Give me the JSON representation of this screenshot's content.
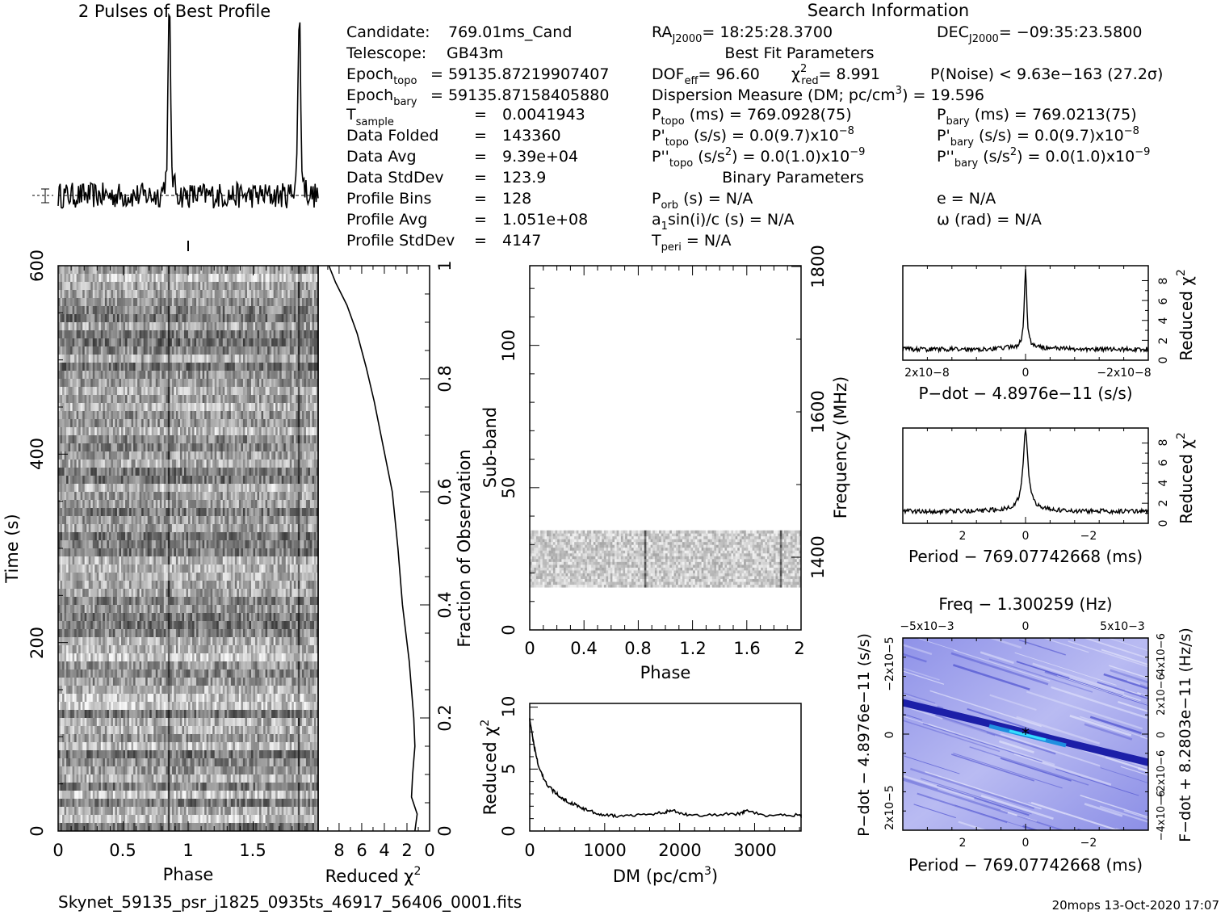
{
  "header": {
    "profile_title": "2 Pulses of Best Profile",
    "search_title": "Search Information",
    "best_fit_title": "Best Fit Parameters",
    "binary_title": "Binary Parameters",
    "filename": "Skynet_59135_psr_j1825_0935ts_46917_56406_0001.fits",
    "stamp": "20mops 13-Oct-2020 17:07"
  },
  "info": {
    "candidate": {
      "label": "Candidate:",
      "value": "769.01ms_Cand"
    },
    "telescope": {
      "label": "Telescope:",
      "value": "GB43m"
    },
    "epoch_topo": {
      "label": "Epoch",
      "sub": "topo",
      "value": "= 59135.87219907407"
    },
    "epoch_bary": {
      "label": "Epoch",
      "sub": "bary",
      "value": "= 59135.87158405880"
    },
    "t_sample": {
      "label": "T",
      "sub": "sample",
      "value": "0.0041943"
    },
    "data_folded": {
      "label": "Data Folded",
      "value": "143360"
    },
    "data_avg": {
      "label": "Data Avg",
      "value": "9.39e+04"
    },
    "data_stddev": {
      "label": "Data StdDev",
      "value": "123.9"
    },
    "profile_bins": {
      "label": "Profile Bins",
      "value": "128"
    },
    "profile_avg": {
      "label": "Profile Avg",
      "value": "1.051e+08"
    },
    "profile_stddev": {
      "label": "Profile StdDev",
      "value": "4147"
    },
    "ra": {
      "label": "RA",
      "sub": "J2000",
      "value": "= 18:25:28.3700"
    },
    "dec": {
      "label": "DEC",
      "sub": "J2000",
      "value": "= −09:35:23.5800"
    },
    "dof": {
      "label": "DOF",
      "sub": "eff",
      "value": "= 96.60"
    },
    "chi2": {
      "label": "χ",
      "sup": "2",
      "sub": "red",
      "value": "= 8.991"
    },
    "pnoise": "P(Noise) < 9.63e−163   (27.2σ)",
    "dm": {
      "label": "Dispersion Measure (DM; pc/cm",
      "sup": "3",
      "value": ") = 19.596"
    },
    "p_topo": {
      "label": "P",
      "sub": "topo",
      "value": " (ms) =  769.0928(75)"
    },
    "p_bary": {
      "label": "P",
      "sub": "bary",
      "value": " (ms) =  769.0213(75)"
    },
    "pd_topo": {
      "label": "P'",
      "sub": "topo",
      "value": " (s/s) = 0.0(9.7)x10",
      "exp": "−8"
    },
    "pd_bary": {
      "label": "P'",
      "sub": "bary",
      "value": " (s/s) = 0.0(9.7)x10",
      "exp": "−8"
    },
    "pdd_topo": {
      "label": "P''",
      "sub": "topo",
      "value": " (s/s",
      "sup": "2",
      "value2": ") = 0.0(1.0)x10",
      "exp": "−9"
    },
    "pdd_bary": {
      "label": "P''",
      "sub": "bary",
      "value": " (s/s",
      "sup": "2",
      "value2": ") = 0.0(1.0)x10",
      "exp": "−9"
    },
    "p_orb": {
      "label": "P",
      "sub": "orb",
      "value": " (s) = N/A"
    },
    "e": "e = N/A",
    "a1sini": {
      "label": "a",
      "sub": "1",
      "value": "sin(i)/c (s) = N/A"
    },
    "omega": "ω (rad) = N/A",
    "t_peri": {
      "label": "T",
      "sub": "peri",
      "value": " = N/A"
    },
    "eq": "="
  },
  "chart_data": [
    {
      "id": "best_profile",
      "type": "line",
      "title": "2 Pulses of Best Profile",
      "xlim": [
        0,
        2
      ],
      "peaks_phase": [
        0.855,
        1.855
      ],
      "baseline_level": 0.05,
      "peak_level": 1.0
    },
    {
      "id": "time_vs_phase",
      "type": "heatmap",
      "xlabel": "Phase",
      "ylabel": "Time (s)",
      "xticks": [
        "0",
        "0.5",
        "1",
        "1.5"
      ],
      "xlim": [
        0,
        2
      ],
      "yticks": [
        "0",
        "200",
        "400",
        "600"
      ],
      "ylim": [
        0,
        600
      ],
      "pulse_phases": [
        0.855,
        1.855
      ]
    },
    {
      "id": "reduced_chi2_vs_fraction",
      "type": "line",
      "xlabel": "Reduced χ",
      "ylabel": "Fraction of Observation",
      "xticks": [
        "8",
        "6",
        "4",
        "2",
        "0"
      ],
      "xlim": [
        9,
        0
      ],
      "yticks": [
        "0",
        "0.2",
        "0.4",
        "0.6",
        "0.8",
        "1"
      ],
      "ylim": [
        0,
        1
      ],
      "x": [
        1.3,
        1.1,
        1.6,
        1.5,
        1.3,
        1.4,
        1.6,
        1.8,
        2.1,
        2.4,
        2.8,
        3.3,
        3.8,
        4.3,
        4.9,
        5.6,
        6.4,
        7.3,
        8.3,
        8.9
      ],
      "y": [
        0.0,
        0.03,
        0.06,
        0.1,
        0.15,
        0.2,
        0.25,
        0.3,
        0.35,
        0.4,
        0.5,
        0.6,
        0.65,
        0.7,
        0.76,
        0.82,
        0.88,
        0.93,
        0.97,
        1.0
      ]
    },
    {
      "id": "subband_vs_phase",
      "type": "heatmap",
      "xlabel": "Phase",
      "ylabel": "Sub-band",
      "y2label": "Frequency (MHz)",
      "xticks": [
        "0",
        "0.4",
        "0.8",
        "1.2",
        "1.6",
        "2"
      ],
      "xlim": [
        0,
        2
      ],
      "yticks": [
        "0",
        "50",
        "100"
      ],
      "ylim": [
        0,
        128
      ],
      "y2ticks": [
        "1400",
        "1600",
        "1800"
      ],
      "filled_subbands": [
        15,
        35
      ],
      "pulse_phases": [
        0.855,
        1.855
      ]
    },
    {
      "id": "chi2_vs_dm",
      "type": "line",
      "xlabel": "DM (pc/cm",
      "ylabel": "Reduced χ",
      "xticks": [
        "0",
        "1000",
        "2000",
        "3000"
      ],
      "xlim": [
        0,
        3800
      ],
      "yticks": [
        "0",
        "5",
        "10"
      ],
      "ylim": [
        0,
        10
      ],
      "x": [
        0,
        20,
        60,
        120,
        200,
        300,
        400,
        500,
        650,
        800,
        1000,
        1200,
        1500,
        1800,
        1900,
        2100,
        2500,
        2800,
        2900,
        3200,
        3500,
        3800
      ],
      "y": [
        8.99,
        8.3,
        6.8,
        5.2,
        4.0,
        3.3,
        2.8,
        2.4,
        2.0,
        1.6,
        1.3,
        1.2,
        1.3,
        1.5,
        1.7,
        1.3,
        1.3,
        1.4,
        1.6,
        1.2,
        1.3,
        1.2
      ]
    },
    {
      "id": "chi2_vs_pdot",
      "type": "line",
      "xlabel": "P−dot − 4.8976e−11 (s/s)",
      "ylabel": "Reduced χ",
      "xticks": [
        "2x10−8",
        "0",
        "−2x10−8"
      ],
      "yticks": [
        "0",
        "2",
        "4",
        "6",
        "8"
      ],
      "ylim": [
        0,
        9.5
      ],
      "peak": 8.991,
      "baseline": 1.1
    },
    {
      "id": "chi2_vs_period",
      "type": "line",
      "xlabel": "Period − 769.07742668 (ms)",
      "ylabel": "Reduced χ",
      "xticks": [
        "2",
        "0",
        "−2"
      ],
      "yticks": [
        "0",
        "2",
        "4",
        "6",
        "8"
      ],
      "ylim": [
        0,
        9.5
      ],
      "peak": 8.991,
      "baseline": 1.2
    },
    {
      "id": "pdot_vs_period",
      "type": "heatmap",
      "title": "Freq − 1.300259 (Hz)",
      "xlabel": "Period − 769.07742668 (ms)",
      "ylabel": "P−dot − 4.8976e−11 (s/s)",
      "y2label": "F−dot + 8.2803e−11 (Hz/s)",
      "xticks": [
        "2",
        "0",
        "−2"
      ],
      "x2ticks": [
        "−5x10−3",
        "0",
        "5x10−3"
      ],
      "yticks": [
        "−2x10−5",
        "0",
        "2x10−5"
      ],
      "y2ticks": [
        "−4x10−6",
        "−2x10−6",
        "0",
        "2x10−6",
        "4x10−6"
      ],
      "best": [
        0,
        0
      ]
    }
  ]
}
